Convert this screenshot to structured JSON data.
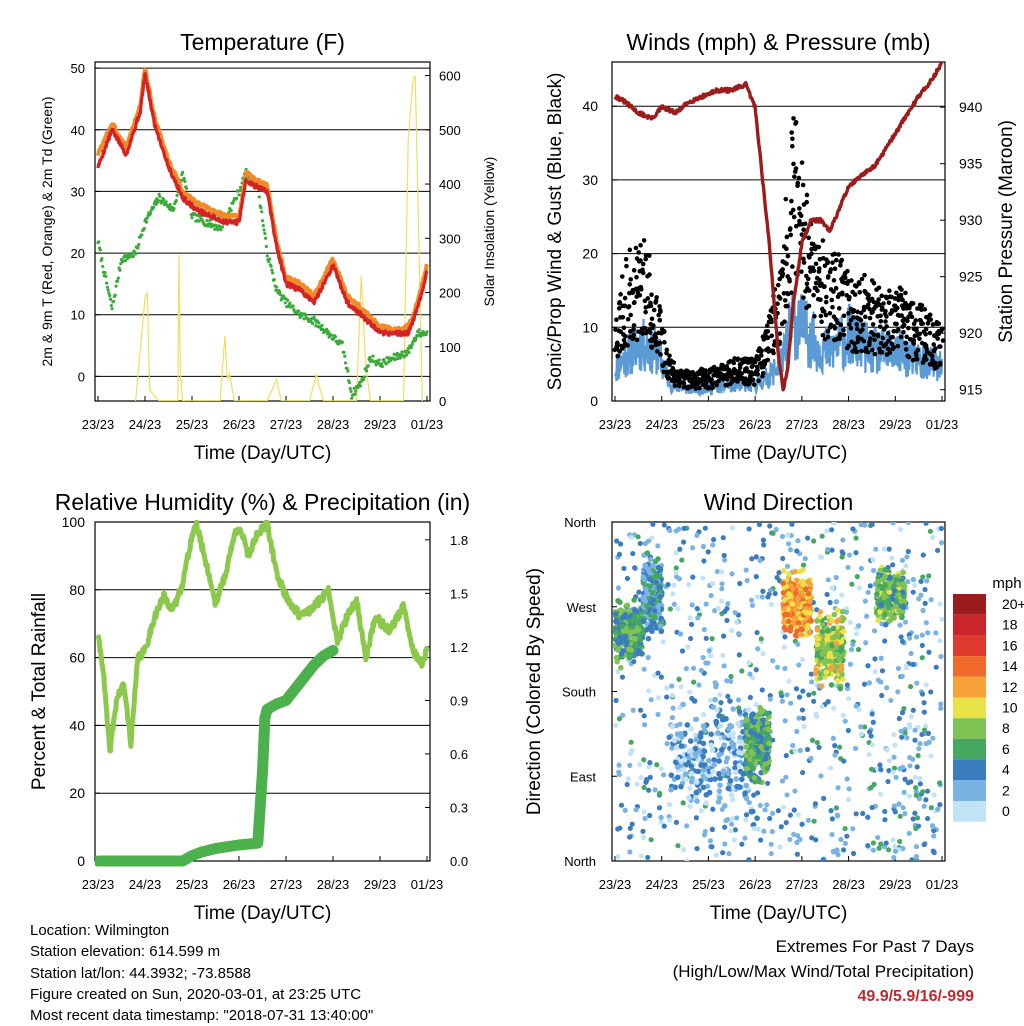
{
  "chart_data": [
    {
      "type": "line",
      "title": "Temperature (F)",
      "xlabel": "Time (Day/UTC)",
      "ylabel": "2m & 9m T (Red, Orange) & 2m Td (Green)",
      "y2label": "Solar Insolation (Yellow)",
      "x_ticks": [
        "23/23",
        "24/23",
        "25/23",
        "26/23",
        "27/23",
        "28/23",
        "29/23",
        "01/23"
      ],
      "ylim": [
        -4,
        51
      ],
      "y_ticks": [
        0,
        10,
        20,
        30,
        40,
        50
      ],
      "y2lim": [
        0,
        625
      ],
      "y2_ticks": [
        0,
        100,
        200,
        300,
        400,
        500,
        600
      ],
      "grid_y": true,
      "colors": {
        "t2m": "#d42323",
        "t9m": "#f08a2a",
        "td": "#3aab3a",
        "solar": "#f5dc5a"
      },
      "series": [
        {
          "key": "t9m",
          "x": [
            0,
            0.3,
            0.6,
            0.9,
            1.0,
            1.2,
            1.5,
            1.8,
            2.1,
            2.4,
            2.7,
            3.0,
            3.15,
            3.3,
            3.6,
            3.8,
            4.0,
            4.3,
            4.6,
            5.0,
            5.3,
            5.6,
            6.0,
            6.3,
            6.6,
            6.8,
            7.0
          ],
          "values": [
            36,
            41,
            37,
            44,
            50,
            42,
            35,
            30,
            28,
            27,
            26,
            26,
            33,
            32,
            31,
            22,
            16,
            15,
            13,
            19,
            13,
            11,
            8,
            7.5,
            8,
            12,
            18
          ]
        },
        {
          "key": "t2m",
          "x": [
            0,
            0.3,
            0.6,
            0.9,
            1.0,
            1.2,
            1.5,
            1.8,
            2.1,
            2.4,
            2.7,
            3.0,
            3.15,
            3.3,
            3.6,
            3.8,
            4.0,
            4.3,
            4.6,
            5.0,
            5.3,
            5.6,
            6.0,
            6.3,
            6.6,
            6.8,
            7.0
          ],
          "values": [
            34,
            40,
            36,
            43,
            49,
            41,
            34,
            29,
            27,
            26,
            25,
            25,
            32,
            31,
            30,
            21,
            15,
            14,
            12,
            18,
            12,
            10,
            7,
            7,
            7,
            11,
            17
          ]
        },
        {
          "key": "td",
          "x": [
            0,
            0.1,
            0.3,
            0.5,
            0.8,
            1.0,
            1.3,
            1.6,
            1.8,
            2.0,
            2.3,
            2.6,
            3.0,
            3.15,
            3.4,
            3.6,
            3.8,
            4.0,
            4.3,
            4.6,
            4.9,
            5.2,
            5.4,
            5.6,
            5.8,
            6.0,
            6.3,
            6.6,
            6.8,
            7.0
          ],
          "values": [
            22,
            18,
            11,
            19,
            20,
            25,
            29,
            27,
            33,
            26,
            25,
            24,
            30,
            33,
            31,
            20,
            14,
            12,
            10,
            9,
            7,
            5,
            -3,
            -1,
            3,
            2,
            3,
            4,
            7,
            7
          ]
        },
        {
          "key": "solar",
          "x": [
            0.8,
            1.0,
            1.05,
            1.1,
            1.3,
            1.7,
            1.72,
            1.75,
            1.8,
            2.0,
            2.6,
            2.7,
            2.75,
            2.8,
            2.9,
            3.6,
            3.8,
            3.85,
            3.9,
            4.5,
            4.65,
            4.7,
            4.8,
            5.5,
            5.6,
            5.7,
            5.8,
            6.0,
            6.5,
            6.6,
            6.7,
            6.75,
            6.8,
            6.9
          ],
          "values": [
            0,
            190,
            200,
            20,
            0,
            0,
            270,
            60,
            0,
            0,
            0,
            120,
            40,
            50,
            0,
            0,
            40,
            20,
            0,
            0,
            50,
            30,
            0,
            0,
            230,
            60,
            0,
            0,
            0,
            480,
            590,
            600,
            400,
            0
          ]
        }
      ]
    },
    {
      "type": "scatter",
      "title": "Winds (mph) & Pressure (mb)",
      "xlabel": "Time (Day/UTC)",
      "ylabel": "Sonic/Prop Wind & Gust (Blue, Black)",
      "y2label": "Station Pressure (Maroon)",
      "x_ticks": [
        "23/23",
        "24/23",
        "25/23",
        "26/23",
        "27/23",
        "28/23",
        "29/23",
        "01/23"
      ],
      "ylim": [
        0,
        46
      ],
      "y_ticks": [
        0,
        10,
        20,
        30,
        40
      ],
      "y2lim": [
        914,
        944
      ],
      "y2_ticks": [
        915,
        920,
        925,
        930,
        935,
        940
      ],
      "grid_y": true,
      "colors": {
        "wind": "#5b9bd5",
        "gust": "#000000",
        "pressure": "#9b1c1c"
      },
      "series": [
        {
          "key": "wind_mean",
          "x": [
            0,
            0.5,
            0.9,
            1.2,
            1.5,
            2.0,
            2.5,
            3.0,
            3.3,
            3.6,
            3.8,
            4.0,
            4.3,
            4.6,
            5.0,
            5.5,
            6.0,
            6.5,
            7.0
          ],
          "values": [
            4,
            7,
            6,
            2,
            1.5,
            1.5,
            2,
            2,
            3,
            5,
            10,
            9,
            7,
            6,
            8,
            6,
            6,
            5,
            4
          ]
        },
        {
          "key": "gust_mean",
          "x": [
            0,
            0.3,
            0.6,
            0.9,
            1.2,
            1.5,
            2.0,
            2.5,
            3.0,
            3.3,
            3.6,
            3.8,
            4.0,
            4.2,
            4.5,
            4.8,
            5.0,
            5.3,
            5.6,
            6.0,
            6.3,
            6.6,
            7.0
          ],
          "values": [
            9,
            14,
            16,
            10,
            4,
            3,
            3,
            4,
            4,
            8,
            14,
            28,
            24,
            18,
            15,
            14,
            12,
            12,
            11,
            11,
            10,
            9,
            7
          ]
        },
        {
          "key": "pressure",
          "x": [
            0,
            0.2,
            0.5,
            0.8,
            1.0,
            1.3,
            1.6,
            1.9,
            2.2,
            2.5,
            2.8,
            3.0,
            3.1,
            3.2,
            3.3,
            3.4,
            3.5,
            3.6,
            3.7,
            3.8,
            3.9,
            4.0,
            4.2,
            4.4,
            4.6,
            4.8,
            5.0,
            5.3,
            5.6,
            5.9,
            6.2,
            6.5,
            6.8,
            7.0
          ],
          "values": [
            941,
            940.5,
            939.5,
            939,
            940,
            939.5,
            940.5,
            941,
            941.5,
            941.5,
            942,
            940,
            936,
            932,
            928,
            923,
            918,
            915,
            917,
            922,
            925,
            928,
            930,
            930,
            929,
            931,
            933,
            934,
            935,
            937,
            939,
            941,
            942.5,
            944
          ]
        }
      ]
    },
    {
      "type": "line",
      "title": "Relative Humidity (%) & Precipitation (in)",
      "xlabel": "Time (Day/UTC)",
      "ylabel": "Percent & Total Rainfall",
      "x_ticks": [
        "23/23",
        "24/23",
        "25/23",
        "26/23",
        "27/23",
        "28/23",
        "29/23",
        "01/23"
      ],
      "ylim": [
        0,
        100
      ],
      "y_ticks": [
        0,
        20,
        40,
        60,
        80,
        100
      ],
      "y2lim": [
        0,
        1.9
      ],
      "y2_ticks": [
        "0.0",
        "0.3",
        "0.6",
        "0.9",
        "1.2",
        "1.5",
        "1.8"
      ],
      "grid_y": true,
      "colors": {
        "rh": "#8cc84b",
        "precip": "#4cb04c"
      },
      "series": [
        {
          "key": "rh",
          "x": [
            0,
            0.1,
            0.25,
            0.4,
            0.55,
            0.7,
            0.85,
            1.0,
            1.2,
            1.4,
            1.6,
            1.8,
            2.0,
            2.1,
            2.3,
            2.5,
            2.7,
            2.9,
            3.0,
            3.2,
            3.4,
            3.6,
            3.8,
            4.0,
            4.3,
            4.6,
            4.9,
            5.1,
            5.3,
            5.5,
            5.7,
            5.9,
            6.2,
            6.5,
            6.7,
            6.9,
            7.0
          ],
          "values": [
            66,
            58,
            32,
            48,
            52,
            35,
            60,
            62,
            72,
            78,
            74,
            82,
            96,
            99,
            88,
            76,
            84,
            96,
            99,
            90,
            97,
            99,
            85,
            78,
            72,
            75,
            80,
            65,
            72,
            77,
            60,
            72,
            68,
            75,
            62,
            58,
            62
          ]
        },
        {
          "key": "precip",
          "x": [
            0,
            0.5,
            1.0,
            1.5,
            1.8,
            2.0,
            2.2,
            2.5,
            3.0,
            3.4,
            3.5,
            3.55,
            3.6,
            3.8,
            4.0,
            4.3,
            4.6,
            4.8,
            5.0
          ],
          "values": [
            0,
            0,
            0,
            0,
            0,
            0.03,
            0.05,
            0.07,
            0.09,
            0.1,
            0.5,
            0.8,
            0.85,
            0.88,
            0.9,
            1.0,
            1.1,
            1.15,
            1.18
          ]
        }
      ]
    },
    {
      "type": "scatter",
      "title": "Wind Direction",
      "xlabel": "Time (Day/UTC)",
      "ylabel": "Direction (Colored By Speed)",
      "x_ticks": [
        "23/23",
        "24/23",
        "25/23",
        "26/23",
        "27/23",
        "28/23",
        "29/23",
        "01/23"
      ],
      "y_ticks": [
        "North",
        "West",
        "South",
        "East",
        "North"
      ],
      "legend_title": "mph",
      "legend_labels": [
        "20+",
        "18",
        "16",
        "14",
        "12",
        "10",
        "8",
        "6",
        "4",
        "2",
        "0"
      ],
      "legend_colors": [
        "#9b1c1c",
        "#c9252b",
        "#e03a2e",
        "#f06a2c",
        "#f9a23c",
        "#e9e34a",
        "#7ec354",
        "#46a860",
        "#3b7cbf",
        "#79b3e3",
        "#c2e2f5"
      ],
      "clusters": [
        {
          "day_start": 0,
          "day_end": 0.6,
          "dir_center": 0.68,
          "dir_spread": 0.05,
          "speed": 6
        },
        {
          "day_start": 0.6,
          "day_end": 1.0,
          "dir_center": 0.78,
          "dir_spread": 0.06,
          "speed": 4
        },
        {
          "day_start": 1.2,
          "day_end": 3.1,
          "dir_center": 0.3,
          "dir_spread": 0.09,
          "speed": 2
        },
        {
          "day_start": 2.8,
          "day_end": 3.3,
          "dir_center": 0.35,
          "dir_spread": 0.06,
          "speed": 6
        },
        {
          "day_start": 3.6,
          "day_end": 4.2,
          "dir_center": 0.75,
          "dir_spread": 0.05,
          "speed": 12
        },
        {
          "day_start": 4.3,
          "day_end": 4.9,
          "dir_center": 0.62,
          "dir_spread": 0.06,
          "speed": 9
        },
        {
          "day_start": 5.6,
          "day_end": 6.2,
          "dir_center": 0.78,
          "dir_spread": 0.04,
          "speed": 7
        }
      ]
    }
  ],
  "footer": {
    "location": "Location: Wilmington",
    "elevation": "Station elevation: 614.599 m",
    "latlon": "Station lat/lon: 44.3932; -73.8588",
    "created": "Figure created on Sun, 2020-03-01, at 23:25 UTC",
    "recent": "Most recent data timestamp: \"2018-07-31 13:40:00\"",
    "extremes_title": "Extremes For Past 7 Days",
    "extremes_sub": "(High/Low/Max Wind/Total Precipitation)",
    "extremes_values": "49.9/5.9/16/-999"
  }
}
